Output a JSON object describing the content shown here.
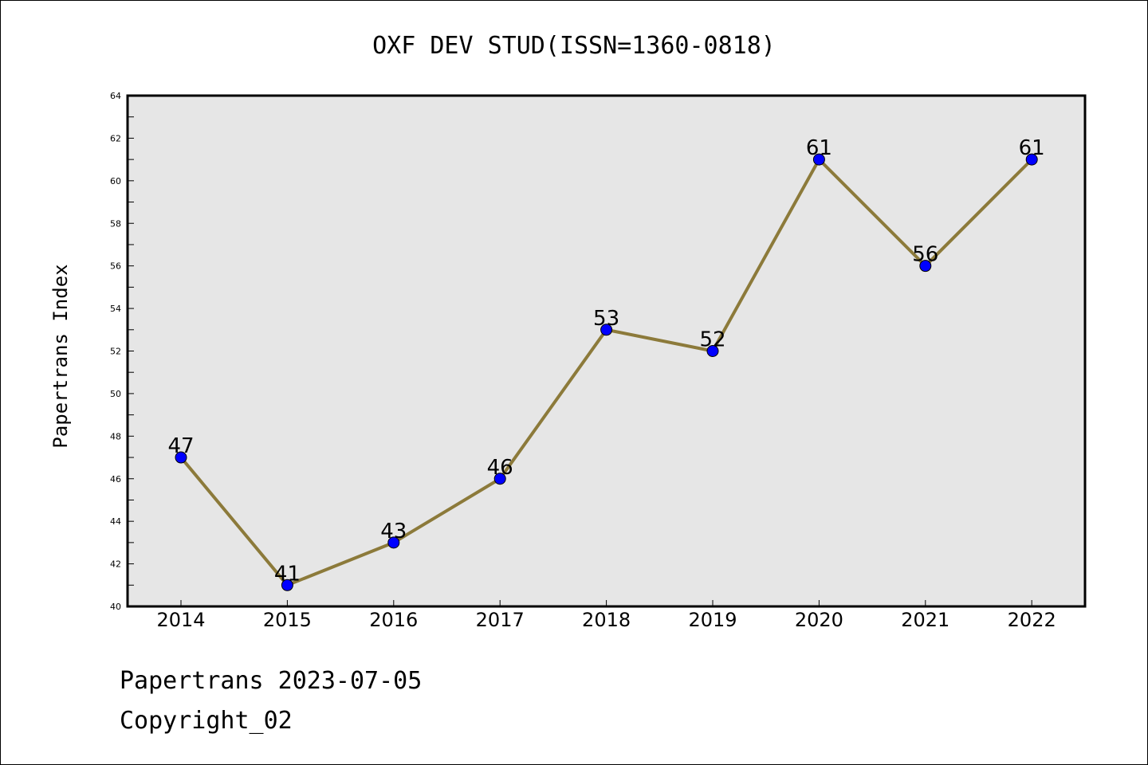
{
  "chart_data": {
    "type": "line",
    "title": "OXF DEV STUD(ISSN=1360-0818)",
    "ylabel": "Papertrans Index",
    "xlabel": "",
    "categories": [
      "2014",
      "2015",
      "2016",
      "2017",
      "2018",
      "2019",
      "2020",
      "2021",
      "2022"
    ],
    "series": [
      {
        "values": [
          47,
          41,
          43,
          46,
          53,
          52,
          61,
          56,
          61
        ]
      }
    ],
    "ylim": [
      40,
      64
    ],
    "yticks": [
      "40",
      "42",
      "44",
      "46",
      "48",
      "50",
      "52",
      "54",
      "56",
      "58",
      "60",
      "62",
      "64"
    ],
    "grid": false,
    "plot_background": "#e6e6e6",
    "line_color": "#8c7a3a",
    "marker_color": "#0000ff"
  },
  "footer": {
    "line1": "Papertrans 2023-07-05",
    "line2": "Copyright_02"
  }
}
